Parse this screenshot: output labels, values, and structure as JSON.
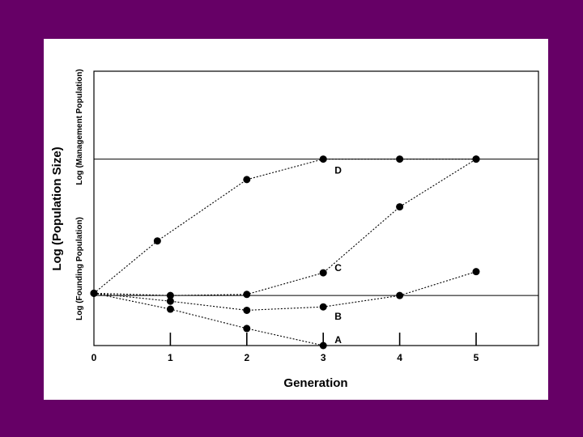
{
  "chart_data": {
    "type": "line",
    "title": "",
    "xlabel": "Generation",
    "ylabel": "Log (Population Size)",
    "ylabel_upper": "Log (Management Population)",
    "ylabel_lower": "Log (Founding Population)",
    "x_ticks": [
      "0",
      "1",
      "2",
      "3",
      "4",
      "5"
    ],
    "xlim": [
      0,
      5.8
    ],
    "ylim": [
      0,
      10
    ],
    "reference_lines": [
      {
        "name": "Management Population",
        "y": 8.2
      },
      {
        "name": "Founding Population",
        "y": 2.2
      }
    ],
    "series": [
      {
        "name": "D",
        "points": [
          [
            0,
            2.3
          ],
          [
            0.83,
            4.6
          ],
          [
            2,
            7.3
          ],
          [
            3,
            8.2
          ],
          [
            4,
            8.2
          ],
          [
            5,
            8.2
          ]
        ]
      },
      {
        "name": "C",
        "points": [
          [
            0,
            2.3
          ],
          [
            1,
            2.2
          ],
          [
            2,
            2.25
          ],
          [
            3,
            3.2
          ],
          [
            4,
            6.1
          ],
          [
            5,
            8.2
          ]
        ]
      },
      {
        "name": "B",
        "points": [
          [
            0,
            2.3
          ],
          [
            1,
            1.95
          ],
          [
            2,
            1.55
          ],
          [
            3,
            1.7
          ],
          [
            4,
            2.2
          ],
          [
            5,
            3.25
          ]
        ]
      },
      {
        "name": "A",
        "points": [
          [
            0,
            2.3
          ],
          [
            1,
            1.6
          ],
          [
            2,
            0.75
          ],
          [
            3,
            0.0
          ]
        ]
      }
    ],
    "grid": false,
    "legend": "none"
  }
}
